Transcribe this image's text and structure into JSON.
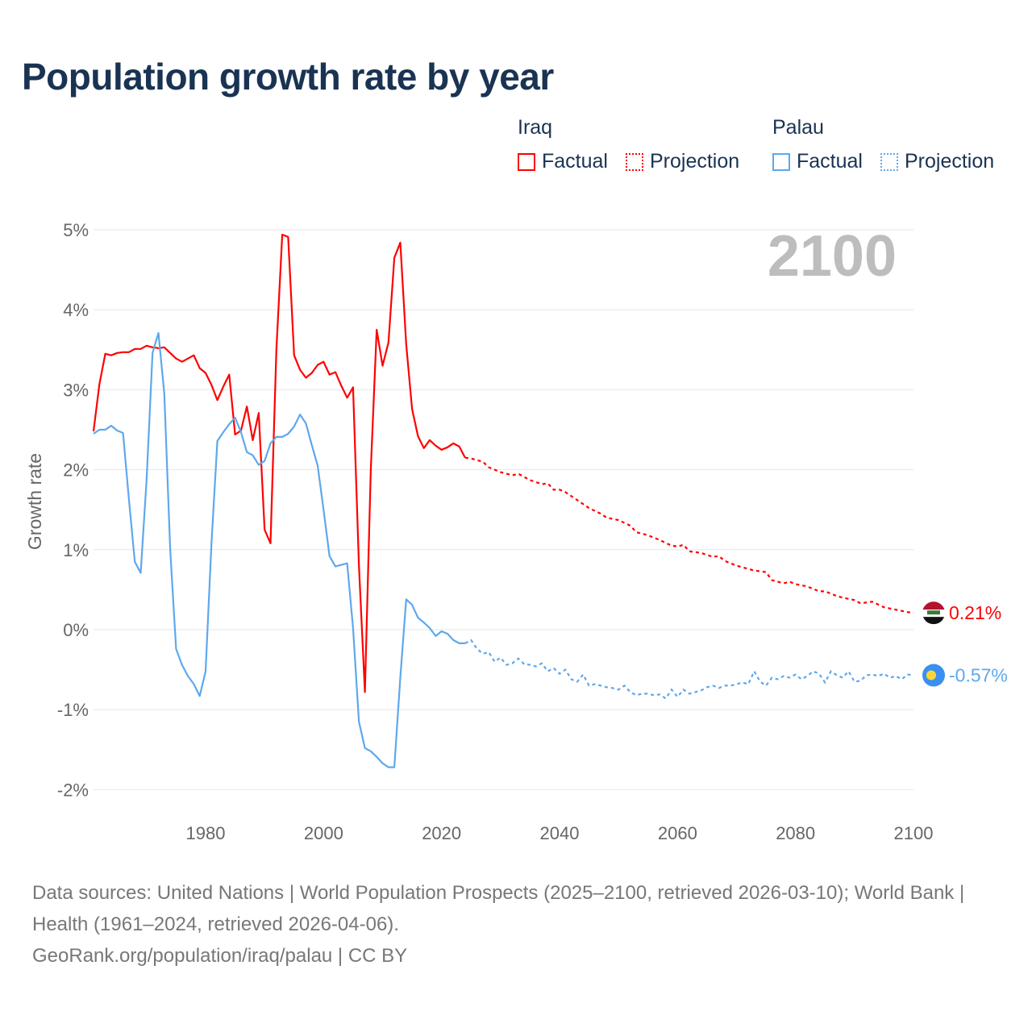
{
  "title": "Population growth rate by year",
  "legend": {
    "groups": [
      {
        "name": "Iraq",
        "factual": "Factual",
        "projection": "Projection",
        "color": "#ff0000"
      },
      {
        "name": "Palau",
        "factual": "Factual",
        "projection": "Projection",
        "color": "#5ea8ec"
      }
    ]
  },
  "year_label": "2100",
  "footer": {
    "sources": "Data sources: United Nations | World Population Prospects (2025–2100, retrieved 2026-03-10); World Bank | Health (1961–2024, retrieved 2026-04-06).",
    "credit": "GeoRank.org/population/iraq/palau | CC BY"
  },
  "chart_data": {
    "type": "line",
    "title": "Population growth rate by year",
    "xlabel": "",
    "ylabel": "Growth rate",
    "xlim": [
      1961,
      2100
    ],
    "ylim": [
      -2,
      5
    ],
    "x_ticks": [
      "1980",
      "2000",
      "2020",
      "2040",
      "2060",
      "2080",
      "2100"
    ],
    "y_ticks": [
      "5%",
      "4%",
      "3%",
      "2%",
      "1%",
      "0%",
      "-1%",
      "-2%"
    ],
    "grid": true,
    "series": [
      {
        "name": "Iraq",
        "color": "#ff0000",
        "end_label": "0.21%",
        "factual": [
          [
            1961,
            2.48
          ],
          [
            1962,
            3.07
          ],
          [
            1963,
            3.45
          ],
          [
            1964,
            3.43
          ],
          [
            1965,
            3.46
          ],
          [
            1966,
            3.47
          ],
          [
            1967,
            3.47
          ],
          [
            1968,
            3.51
          ],
          [
            1969,
            3.51
          ],
          [
            1970,
            3.55
          ],
          [
            1971,
            3.53
          ],
          [
            1972,
            3.52
          ],
          [
            1973,
            3.53
          ],
          [
            1974,
            3.46
          ],
          [
            1975,
            3.39
          ],
          [
            1976,
            3.35
          ],
          [
            1977,
            3.39
          ],
          [
            1978,
            3.43
          ],
          [
            1979,
            3.27
          ],
          [
            1980,
            3.21
          ],
          [
            1981,
            3.06
          ],
          [
            1982,
            2.87
          ],
          [
            1983,
            3.04
          ],
          [
            1984,
            3.19
          ],
          [
            1985,
            2.44
          ],
          [
            1986,
            2.49
          ],
          [
            1987,
            2.79
          ],
          [
            1988,
            2.37
          ],
          [
            1989,
            2.71
          ],
          [
            1990,
            1.25
          ],
          [
            1991,
            1.08
          ],
          [
            1992,
            3.5
          ],
          [
            1993,
            4.94
          ],
          [
            1994,
            4.91
          ],
          [
            1995,
            3.43
          ],
          [
            1996,
            3.25
          ],
          [
            1997,
            3.15
          ],
          [
            1998,
            3.21
          ],
          [
            1999,
            3.31
          ],
          [
            2000,
            3.35
          ],
          [
            2001,
            3.19
          ],
          [
            2002,
            3.22
          ],
          [
            2003,
            3.05
          ],
          [
            2004,
            2.9
          ],
          [
            2005,
            3.03
          ],
          [
            2006,
            0.8
          ],
          [
            2007,
            -0.78
          ],
          [
            2008,
            2.0
          ],
          [
            2009,
            3.75
          ],
          [
            2010,
            3.3
          ],
          [
            2011,
            3.59
          ],
          [
            2012,
            4.65
          ],
          [
            2013,
            4.84
          ],
          [
            2014,
            3.57
          ],
          [
            2015,
            2.76
          ],
          [
            2016,
            2.42
          ],
          [
            2017,
            2.27
          ],
          [
            2018,
            2.37
          ],
          [
            2019,
            2.3
          ],
          [
            2020,
            2.25
          ],
          [
            2021,
            2.28
          ],
          [
            2022,
            2.33
          ],
          [
            2023,
            2.29
          ],
          [
            2024,
            2.15
          ]
        ],
        "projection": [
          [
            2024,
            2.15
          ],
          [
            2025,
            2.14
          ],
          [
            2027,
            2.1
          ],
          [
            2028,
            2.03
          ],
          [
            2030,
            1.97
          ],
          [
            2032,
            1.93
          ],
          [
            2033,
            1.95
          ],
          [
            2035,
            1.87
          ],
          [
            2037,
            1.82
          ],
          [
            2038,
            1.83
          ],
          [
            2039,
            1.75
          ],
          [
            2040,
            1.75
          ],
          [
            2041,
            1.72
          ],
          [
            2043,
            1.62
          ],
          [
            2045,
            1.52
          ],
          [
            2047,
            1.45
          ],
          [
            2048,
            1.4
          ],
          [
            2050,
            1.37
          ],
          [
            2052,
            1.3
          ],
          [
            2053,
            1.22
          ],
          [
            2055,
            1.18
          ],
          [
            2057,
            1.12
          ],
          [
            2059,
            1.05
          ],
          [
            2060,
            1.04
          ],
          [
            2061,
            1.06
          ],
          [
            2062,
            0.98
          ],
          [
            2064,
            0.96
          ],
          [
            2066,
            0.91
          ],
          [
            2067,
            0.92
          ],
          [
            2068,
            0.86
          ],
          [
            2070,
            0.8
          ],
          [
            2072,
            0.76
          ],
          [
            2073,
            0.74
          ],
          [
            2075,
            0.72
          ],
          [
            2076,
            0.62
          ],
          [
            2078,
            0.58
          ],
          [
            2079,
            0.6
          ],
          [
            2080,
            0.57
          ],
          [
            2082,
            0.54
          ],
          [
            2084,
            0.48
          ],
          [
            2085,
            0.48
          ],
          [
            2087,
            0.42
          ],
          [
            2088,
            0.4
          ],
          [
            2090,
            0.37
          ],
          [
            2091,
            0.33
          ],
          [
            2093,
            0.35
          ],
          [
            2095,
            0.28
          ],
          [
            2097,
            0.25
          ],
          [
            2099,
            0.22
          ],
          [
            2100,
            0.21
          ]
        ]
      },
      {
        "name": "Palau",
        "color": "#5ea8ec",
        "end_label": "-0.57%",
        "factual": [
          [
            1961,
            2.45
          ],
          [
            1962,
            2.5
          ],
          [
            1963,
            2.5
          ],
          [
            1964,
            2.55
          ],
          [
            1965,
            2.49
          ],
          [
            1966,
            2.46
          ],
          [
            1967,
            1.63
          ],
          [
            1968,
            0.85
          ],
          [
            1969,
            0.71
          ],
          [
            1970,
            1.87
          ],
          [
            1971,
            3.46
          ],
          [
            1972,
            3.71
          ],
          [
            1973,
            2.95
          ],
          [
            1974,
            1.0
          ],
          [
            1975,
            -0.24
          ],
          [
            1976,
            -0.44
          ],
          [
            1977,
            -0.58
          ],
          [
            1978,
            -0.68
          ],
          [
            1979,
            -0.83
          ],
          [
            1980,
            -0.52
          ],
          [
            1981,
            1.08
          ],
          [
            1982,
            2.36
          ],
          [
            1983,
            2.47
          ],
          [
            1984,
            2.57
          ],
          [
            1985,
            2.65
          ],
          [
            1986,
            2.47
          ],
          [
            1987,
            2.22
          ],
          [
            1988,
            2.18
          ],
          [
            1989,
            2.06
          ],
          [
            1990,
            2.11
          ],
          [
            1991,
            2.33
          ],
          [
            1992,
            2.41
          ],
          [
            1993,
            2.41
          ],
          [
            1994,
            2.45
          ],
          [
            1995,
            2.54
          ],
          [
            1996,
            2.69
          ],
          [
            1997,
            2.58
          ],
          [
            1998,
            2.31
          ],
          [
            1999,
            2.05
          ],
          [
            2000,
            1.5
          ],
          [
            2001,
            0.92
          ],
          [
            2002,
            0.79
          ],
          [
            2003,
            0.81
          ],
          [
            2004,
            0.83
          ],
          [
            2005,
            0.02
          ],
          [
            2006,
            -1.15
          ],
          [
            2007,
            -1.48
          ],
          [
            2008,
            -1.52
          ],
          [
            2009,
            -1.59
          ],
          [
            2010,
            -1.67
          ],
          [
            2011,
            -1.72
          ],
          [
            2012,
            -1.72
          ],
          [
            2013,
            -0.6
          ],
          [
            2014,
            0.38
          ],
          [
            2015,
            0.31
          ],
          [
            2016,
            0.15
          ],
          [
            2017,
            0.09
          ],
          [
            2018,
            0.02
          ],
          [
            2019,
            -0.08
          ],
          [
            2020,
            -0.02
          ],
          [
            2021,
            -0.05
          ],
          [
            2022,
            -0.13
          ],
          [
            2023,
            -0.17
          ],
          [
            2024,
            -0.17
          ]
        ],
        "projection": [
          [
            2024,
            -0.17
          ],
          [
            2025,
            -0.13
          ],
          [
            2026,
            -0.24
          ],
          [
            2027,
            -0.3
          ],
          [
            2028,
            -0.28
          ],
          [
            2029,
            -0.4
          ],
          [
            2030,
            -0.35
          ],
          [
            2031,
            -0.44
          ],
          [
            2032,
            -0.42
          ],
          [
            2033,
            -0.36
          ],
          [
            2034,
            -0.43
          ],
          [
            2035,
            -0.44
          ],
          [
            2036,
            -0.46
          ],
          [
            2037,
            -0.42
          ],
          [
            2038,
            -0.52
          ],
          [
            2039,
            -0.48
          ],
          [
            2040,
            -0.55
          ],
          [
            2041,
            -0.5
          ],
          [
            2042,
            -0.62
          ],
          [
            2043,
            -0.65
          ],
          [
            2044,
            -0.56
          ],
          [
            2045,
            -0.7
          ],
          [
            2046,
            -0.68
          ],
          [
            2047,
            -0.7
          ],
          [
            2048,
            -0.72
          ],
          [
            2049,
            -0.73
          ],
          [
            2050,
            -0.75
          ],
          [
            2051,
            -0.7
          ],
          [
            2052,
            -0.78
          ],
          [
            2053,
            -0.82
          ],
          [
            2054,
            -0.8
          ],
          [
            2055,
            -0.8
          ],
          [
            2056,
            -0.82
          ],
          [
            2057,
            -0.81
          ],
          [
            2058,
            -0.86
          ],
          [
            2059,
            -0.75
          ],
          [
            2060,
            -0.84
          ],
          [
            2061,
            -0.75
          ],
          [
            2062,
            -0.8
          ],
          [
            2063,
            -0.78
          ],
          [
            2064,
            -0.76
          ],
          [
            2065,
            -0.72
          ],
          [
            2066,
            -0.7
          ],
          [
            2067,
            -0.73
          ],
          [
            2068,
            -0.7
          ],
          [
            2069,
            -0.7
          ],
          [
            2070,
            -0.68
          ],
          [
            2071,
            -0.66
          ],
          [
            2072,
            -0.68
          ],
          [
            2073,
            -0.52
          ],
          [
            2074,
            -0.65
          ],
          [
            2075,
            -0.7
          ],
          [
            2076,
            -0.6
          ],
          [
            2077,
            -0.62
          ],
          [
            2078,
            -0.58
          ],
          [
            2079,
            -0.6
          ],
          [
            2080,
            -0.56
          ],
          [
            2081,
            -0.62
          ],
          [
            2082,
            -0.58
          ],
          [
            2083,
            -0.52
          ],
          [
            2084,
            -0.55
          ],
          [
            2085,
            -0.66
          ],
          [
            2086,
            -0.52
          ],
          [
            2087,
            -0.57
          ],
          [
            2088,
            -0.6
          ],
          [
            2089,
            -0.52
          ],
          [
            2090,
            -0.65
          ],
          [
            2091,
            -0.64
          ],
          [
            2092,
            -0.57
          ],
          [
            2093,
            -0.56
          ],
          [
            2094,
            -0.58
          ],
          [
            2095,
            -0.55
          ],
          [
            2096,
            -0.6
          ],
          [
            2097,
            -0.58
          ],
          [
            2098,
            -0.62
          ],
          [
            2099,
            -0.56
          ],
          [
            2100,
            -0.57
          ]
        ]
      }
    ]
  }
}
